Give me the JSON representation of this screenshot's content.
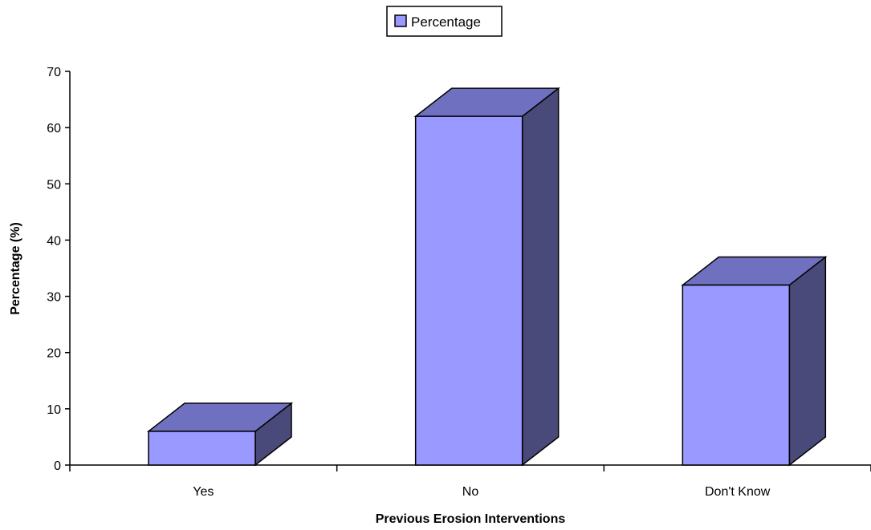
{
  "chart_data": {
    "type": "bar",
    "categories": [
      "Yes",
      "No",
      "Don't Know"
    ],
    "series": [
      {
        "name": "Percentage",
        "values": [
          6,
          62,
          32
        ]
      }
    ],
    "xlabel": "Previous Erosion Interventions",
    "ylabel": "Percentage (%)",
    "ylim": [
      0,
      70
    ],
    "yticks": [
      0,
      10,
      20,
      30,
      40,
      50,
      60,
      70
    ],
    "legend": {
      "position": "top-center",
      "entries": [
        "Percentage"
      ]
    },
    "grid": false,
    "colors": {
      "front": "#9999ff",
      "top": "#7070c0",
      "side": "#4a4a7a",
      "stroke": "#000000"
    }
  }
}
